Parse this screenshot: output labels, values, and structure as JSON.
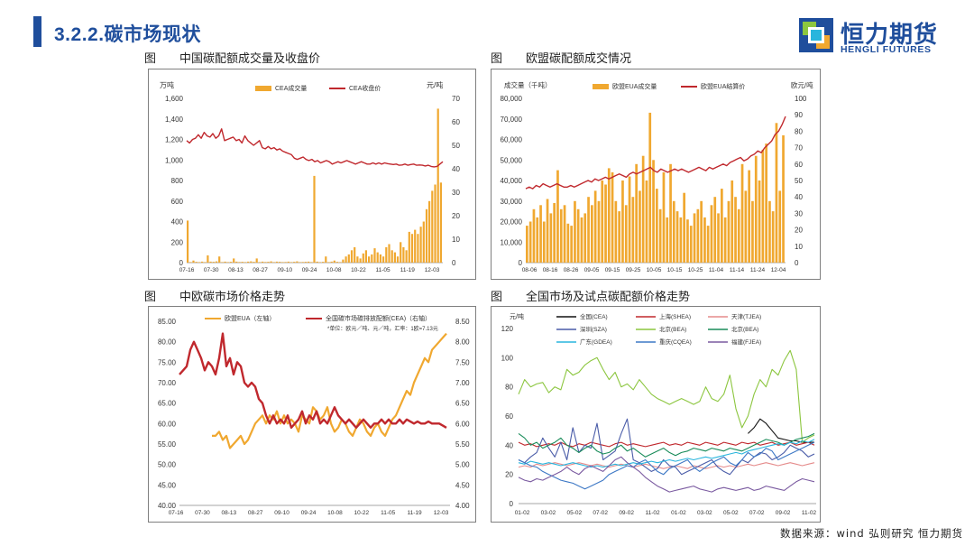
{
  "header": {
    "title": "3.2.2.碳市场现状"
  },
  "brand": {
    "name_cn": "恒力期货",
    "name_en": "HENGLI FUTURES",
    "color": "#1f4e9c"
  },
  "panels": [
    {
      "tag": "图",
      "caption": "中国碳配额成交量及收盘价"
    },
    {
      "tag": "图",
      "caption": "欧盟碳配额成交情况"
    },
    {
      "tag": "图",
      "caption": "中欧碳市场价格走势"
    },
    {
      "tag": "图",
      "caption": "全国市场及试点碳配额价格走势"
    }
  ],
  "source": "数据来源：wind 弘则研究 恒力期货",
  "chart_data": [
    {
      "type": "bar",
      "legend": [
        "CEA成交量",
        "CEA收盘价"
      ],
      "unit_left": "万吨",
      "unit_right": "元/吨",
      "x_ticks": [
        "07-16",
        "07-30",
        "08-13",
        "08-27",
        "09-10",
        "09-24",
        "10-08",
        "10-22",
        "11-05",
        "11-19",
        "12-03"
      ],
      "y_left": {
        "min": 0,
        "max": 1600,
        "ticks": [
          "0",
          "200",
          "400",
          "600",
          "800",
          "1,000",
          "1,200",
          "1,400",
          "1,600"
        ]
      },
      "y_right": {
        "min": 0,
        "max": 70,
        "ticks": [
          "0",
          "10",
          "20",
          "30",
          "40",
          "50",
          "60",
          "70"
        ]
      },
      "bar_color": "#f0a830",
      "line_color": "#c0282d",
      "volume": [
        410,
        5,
        20,
        8,
        5,
        10,
        5,
        70,
        10,
        8,
        12,
        60,
        5,
        10,
        5,
        8,
        40,
        10,
        6,
        8,
        5,
        10,
        12,
        8,
        40,
        5,
        10,
        6,
        8,
        12,
        5,
        10,
        8,
        5,
        6,
        10,
        5,
        8,
        12,
        5,
        6,
        8,
        10,
        5,
        845,
        10,
        5,
        8,
        60,
        5,
        10,
        20,
        8,
        5,
        30,
        60,
        80,
        120,
        150,
        60,
        40,
        90,
        120,
        60,
        80,
        140,
        100,
        80,
        60,
        150,
        180,
        120,
        100,
        60,
        200,
        150,
        120,
        300,
        280,
        320,
        280,
        350,
        400,
        520,
        600,
        700,
        760,
        1500,
        780
      ],
      "price": [
        52,
        51,
        52.5,
        53,
        54.5,
        53,
        55.5,
        54,
        53.5,
        55,
        53,
        54,
        57,
        52,
        52.5,
        53,
        53.5,
        52,
        52.5,
        51,
        54,
        52,
        51,
        50,
        51,
        52,
        49,
        48.5,
        49.5,
        48.5,
        49,
        48,
        48.5,
        47.5,
        47,
        46.5,
        46,
        44.5,
        44,
        44.5,
        45,
        44,
        43.5,
        44,
        43,
        43.5,
        42.5,
        43,
        43.5,
        43,
        42,
        42.5,
        43,
        42.5,
        43,
        43.5,
        43,
        42.5,
        42,
        42.5,
        43,
        42.5,
        42,
        42,
        42.5,
        42,
        42.5,
        42,
        42.5,
        42.2,
        42,
        41.8,
        42,
        41.5,
        41.6,
        42,
        41.5,
        41.8,
        42,
        41.5,
        41.6,
        41.5,
        41.2,
        41.5,
        41,
        40.8,
        41,
        42,
        43
      ]
    },
    {
      "type": "bar",
      "legend": [
        "欧盟EUA成交量",
        "欧盟EUA结算价"
      ],
      "unit_left": "成交量（千吨）",
      "unit_right": "欧元/吨",
      "x_ticks": [
        "08-06",
        "08-16",
        "08-26",
        "09-05",
        "09-15",
        "09-25",
        "10-05",
        "10-15",
        "10-25",
        "11-04",
        "11-14",
        "11-24",
        "12-04"
      ],
      "y_left": {
        "min": 0,
        "max": 80000,
        "ticks": [
          "0",
          "10,000",
          "20,000",
          "30,000",
          "40,000",
          "50,000",
          "60,000",
          "70,000",
          "80,000"
        ]
      },
      "y_right": {
        "min": 0,
        "max": 100,
        "ticks": [
          "0",
          "10",
          "20",
          "30",
          "40",
          "50",
          "60",
          "70",
          "80",
          "90",
          "100"
        ]
      },
      "bar_color": "#f0a830",
      "line_color": "#c0282d",
      "volume": [
        18000,
        20000,
        26000,
        22000,
        28000,
        20000,
        31000,
        24000,
        29000,
        45000,
        26000,
        28000,
        19000,
        18000,
        30000,
        26000,
        22000,
        24000,
        32000,
        28000,
        35000,
        30000,
        40000,
        38000,
        46000,
        44000,
        30000,
        25000,
        40000,
        28000,
        42000,
        32000,
        48000,
        35000,
        52000,
        40000,
        73000,
        50000,
        36000,
        26000,
        44000,
        22000,
        48000,
        30000,
        25000,
        22000,
        34000,
        21000,
        18000,
        24000,
        26000,
        30000,
        22000,
        18000,
        28000,
        32000,
        24000,
        36000,
        22000,
        30000,
        40000,
        32000,
        26000,
        48000,
        35000,
        45000,
        30000,
        52000,
        40000,
        55000,
        58000,
        30000,
        25000,
        68000,
        35000,
        62000
      ],
      "price": [
        45,
        46,
        45,
        47,
        46,
        48,
        47,
        46,
        47,
        48,
        47,
        46,
        46,
        47,
        46,
        47,
        48,
        49,
        50,
        49,
        51,
        50,
        51,
        52,
        51,
        52,
        53,
        54,
        53,
        52,
        54,
        55,
        54,
        55,
        56,
        57,
        58,
        56,
        55,
        57,
        56,
        55,
        56,
        57,
        56,
        57,
        56,
        55,
        56,
        57,
        58,
        57,
        56,
        58,
        57,
        58,
        59,
        60,
        59,
        61,
        62,
        63,
        64,
        62,
        63,
        65,
        66,
        68,
        67,
        70,
        72,
        74,
        78,
        80,
        84,
        89
      ]
    },
    {
      "type": "line",
      "legend": [
        "欧盟EUA（左轴）",
        "全国碳市场碳排放配额(CEA)（右轴）"
      ],
      "note": "*单位：欧元／吨、元／吨，汇率：1欧=7.13元",
      "x_ticks": [
        "07-16",
        "07-30",
        "08-13",
        "08-27",
        "09-10",
        "09-24",
        "10-08",
        "10-22",
        "11-05",
        "11-19",
        "12-03"
      ],
      "y_left": {
        "min": 40,
        "max": 85,
        "ticks": [
          "40.00",
          "45.00",
          "50.00",
          "55.00",
          "60.00",
          "65.00",
          "70.00",
          "75.00",
          "80.00",
          "85.00"
        ]
      },
      "y_right": {
        "min": 4.0,
        "max": 8.5,
        "ticks": [
          "4.00",
          "4.50",
          "5.00",
          "5.50",
          "6.00",
          "6.50",
          "7.00",
          "7.50",
          "8.00",
          "8.50"
        ]
      },
      "eua_color": "#f0a830",
      "cea_color": "#c0282d",
      "eua": [
        null,
        null,
        null,
        null,
        null,
        null,
        null,
        null,
        null,
        57,
        57,
        58,
        56,
        57,
        54,
        55,
        56,
        57,
        55,
        56,
        58,
        60,
        61,
        62,
        60,
        62,
        61,
        63,
        60,
        62,
        60,
        61,
        60,
        58,
        62,
        61,
        60,
        64,
        63,
        61,
        62,
        64,
        60,
        58,
        59,
        61,
        60,
        58,
        57,
        59,
        61,
        60,
        58,
        57,
        59,
        60,
        58,
        57,
        59,
        61,
        62,
        64,
        66,
        68,
        67,
        70,
        72,
        74,
        76,
        75,
        78,
        79,
        80,
        81,
        82
      ],
      "cea": [
        7.2,
        7.3,
        7.4,
        7.8,
        8.0,
        7.8,
        7.6,
        7.3,
        7.5,
        7.4,
        7.2,
        7.6,
        8.2,
        7.4,
        7.6,
        7.2,
        7.5,
        7.4,
        7.0,
        6.9,
        7.0,
        6.9,
        6.6,
        6.5,
        6.2,
        6.0,
        6.2,
        6.0,
        6.1,
        6.0,
        6.2,
        5.9,
        6.0,
        6.1,
        6.3,
        6.0,
        6.2,
        6.1,
        6.3,
        6.0,
        6.1,
        6.0,
        6.2,
        6.4,
        6.2,
        6.1,
        6.0,
        6.1,
        6.0,
        5.9,
        6.0,
        6.1,
        6.0,
        5.9,
        6.0,
        6.0,
        6.1,
        6.0,
        6.1,
        6.0,
        6.0,
        6.1,
        6.0,
        6.1,
        6.05,
        6.0,
        6.05,
        6.0,
        6.0,
        6.05,
        6.0,
        6.0,
        6.0,
        5.95,
        5.9
      ]
    },
    {
      "type": "line",
      "unit": "元/吨",
      "x_ticks": [
        "01-02",
        "03-02",
        "05-02",
        "07-02",
        "09-02",
        "11-02",
        "01-02",
        "03-02",
        "05-02",
        "07-02",
        "09-02",
        "11-02"
      ],
      "y": {
        "min": 0,
        "max": 120,
        "ticks": [
          "0",
          "20",
          "40",
          "60",
          "80",
          "100",
          "120"
        ]
      },
      "series": [
        {
          "name": "全国(CEA)",
          "color": "#111111",
          "values": [
            null,
            null,
            null,
            null,
            null,
            null,
            null,
            null,
            null,
            null,
            null,
            null,
            null,
            null,
            null,
            null,
            null,
            null,
            null,
            null,
            null,
            null,
            null,
            null,
            null,
            null,
            null,
            null,
            null,
            null,
            null,
            null,
            null,
            null,
            null,
            null,
            null,
            null,
            48,
            52,
            58,
            55,
            50,
            45,
            44,
            43,
            43,
            42,
            42,
            42
          ]
        },
        {
          "name": "上海(SHEA)",
          "color": "#c0282d",
          "values": [
            42,
            40,
            41,
            39,
            40,
            41,
            40,
            42,
            40,
            39,
            41,
            40,
            42,
            41,
            40,
            39,
            41,
            42,
            40,
            41,
            40,
            39,
            40,
            41,
            42,
            40,
            41,
            40,
            42,
            41,
            40,
            42,
            41,
            40,
            42,
            41,
            40,
            42,
            41,
            42,
            40,
            41,
            42,
            40,
            41,
            42,
            40,
            41,
            42,
            40
          ]
        },
        {
          "name": "天津(TJEA)",
          "color": "#e58c8c",
          "values": [
            25,
            26,
            25,
            27,
            26,
            27,
            28,
            27,
            26,
            27,
            28,
            27,
            26,
            27,
            26,
            25,
            26,
            27,
            26,
            25,
            26,
            27,
            26,
            25,
            24,
            25,
            26,
            25,
            24,
            26,
            25,
            24,
            25,
            26,
            25,
            26,
            25,
            26,
            27,
            26,
            27,
            28,
            27,
            26,
            27,
            28,
            27,
            26,
            27,
            28
          ]
        },
        {
          "name": "深圳(SZA)",
          "color": "#4a5ca8",
          "values": [
            30,
            28,
            32,
            35,
            45,
            38,
            32,
            42,
            30,
            52,
            35,
            40,
            38,
            55,
            30,
            33,
            36,
            48,
            58,
            30,
            28,
            25,
            22,
            24,
            30,
            26,
            25,
            20,
            22,
            24,
            26,
            28,
            30,
            25,
            22,
            20,
            25,
            30,
            28,
            32,
            35,
            34,
            30,
            32,
            35,
            40,
            38,
            36,
            32,
            34
          ]
        },
        {
          "name": "北京(BEA)",
          "color": "#8cc63f",
          "values": [
            75,
            85,
            80,
            82,
            83,
            76,
            80,
            78,
            92,
            88,
            90,
            95,
            98,
            100,
            92,
            85,
            90,
            80,
            82,
            78,
            85,
            80,
            75,
            72,
            70,
            68,
            70,
            72,
            70,
            68,
            70,
            80,
            72,
            70,
            75,
            88,
            65,
            52,
            60,
            75,
            85,
            80,
            92,
            88,
            98,
            105,
            92,
            42,
            45,
            47
          ]
        },
        {
          "name": "北京(BEA)",
          "color": "#1a8c5a",
          "values": [
            48,
            45,
            40,
            42,
            38,
            40,
            42,
            45,
            40,
            38,
            35,
            38,
            40,
            36,
            34,
            35,
            38,
            40,
            36,
            38,
            35,
            32,
            34,
            36,
            38,
            35,
            33,
            35,
            36,
            38,
            37,
            36,
            38,
            37,
            36,
            38,
            37,
            36,
            38,
            40,
            42,
            44,
            43,
            42,
            40,
            42,
            44,
            45,
            46,
            48
          ]
        },
        {
          "name": "广东(GDEA)",
          "color": "#29b5dd",
          "values": [
            28,
            27,
            29,
            28,
            27,
            28,
            27,
            26,
            27,
            28,
            27,
            26,
            25,
            26,
            25,
            26,
            27,
            26,
            27,
            28,
            27,
            28,
            29,
            28,
            29,
            30,
            29,
            30,
            31,
            30,
            31,
            32,
            31,
            32,
            33,
            34,
            35,
            34,
            36,
            37,
            38,
            39,
            40,
            41,
            40,
            42,
            41,
            43,
            42,
            44
          ]
        },
        {
          "name": "重庆(CQEA)",
          "color": "#3d78c5",
          "values": [
            30,
            28,
            26,
            25,
            22,
            20,
            18,
            16,
            15,
            14,
            12,
            10,
            12,
            14,
            16,
            20,
            22,
            24,
            26,
            25,
            28,
            30,
            26,
            22,
            20,
            24,
            26,
            28,
            30,
            25,
            22,
            25,
            28,
            30,
            32,
            28,
            26,
            30,
            35,
            32,
            34,
            38,
            36,
            30,
            32,
            34,
            36,
            38,
            40,
            42
          ]
        },
        {
          "name": "福建(FJEA)",
          "color": "#7a5aa0",
          "values": [
            18,
            16,
            15,
            17,
            16,
            18,
            20,
            22,
            25,
            22,
            20,
            24,
            26,
            24,
            22,
            26,
            30,
            32,
            28,
            25,
            22,
            18,
            15,
            12,
            10,
            8,
            9,
            10,
            11,
            12,
            10,
            9,
            8,
            10,
            11,
            10,
            9,
            10,
            11,
            9,
            10,
            12,
            11,
            10,
            9,
            12,
            15,
            17,
            16,
            15
          ]
        }
      ]
    }
  ]
}
